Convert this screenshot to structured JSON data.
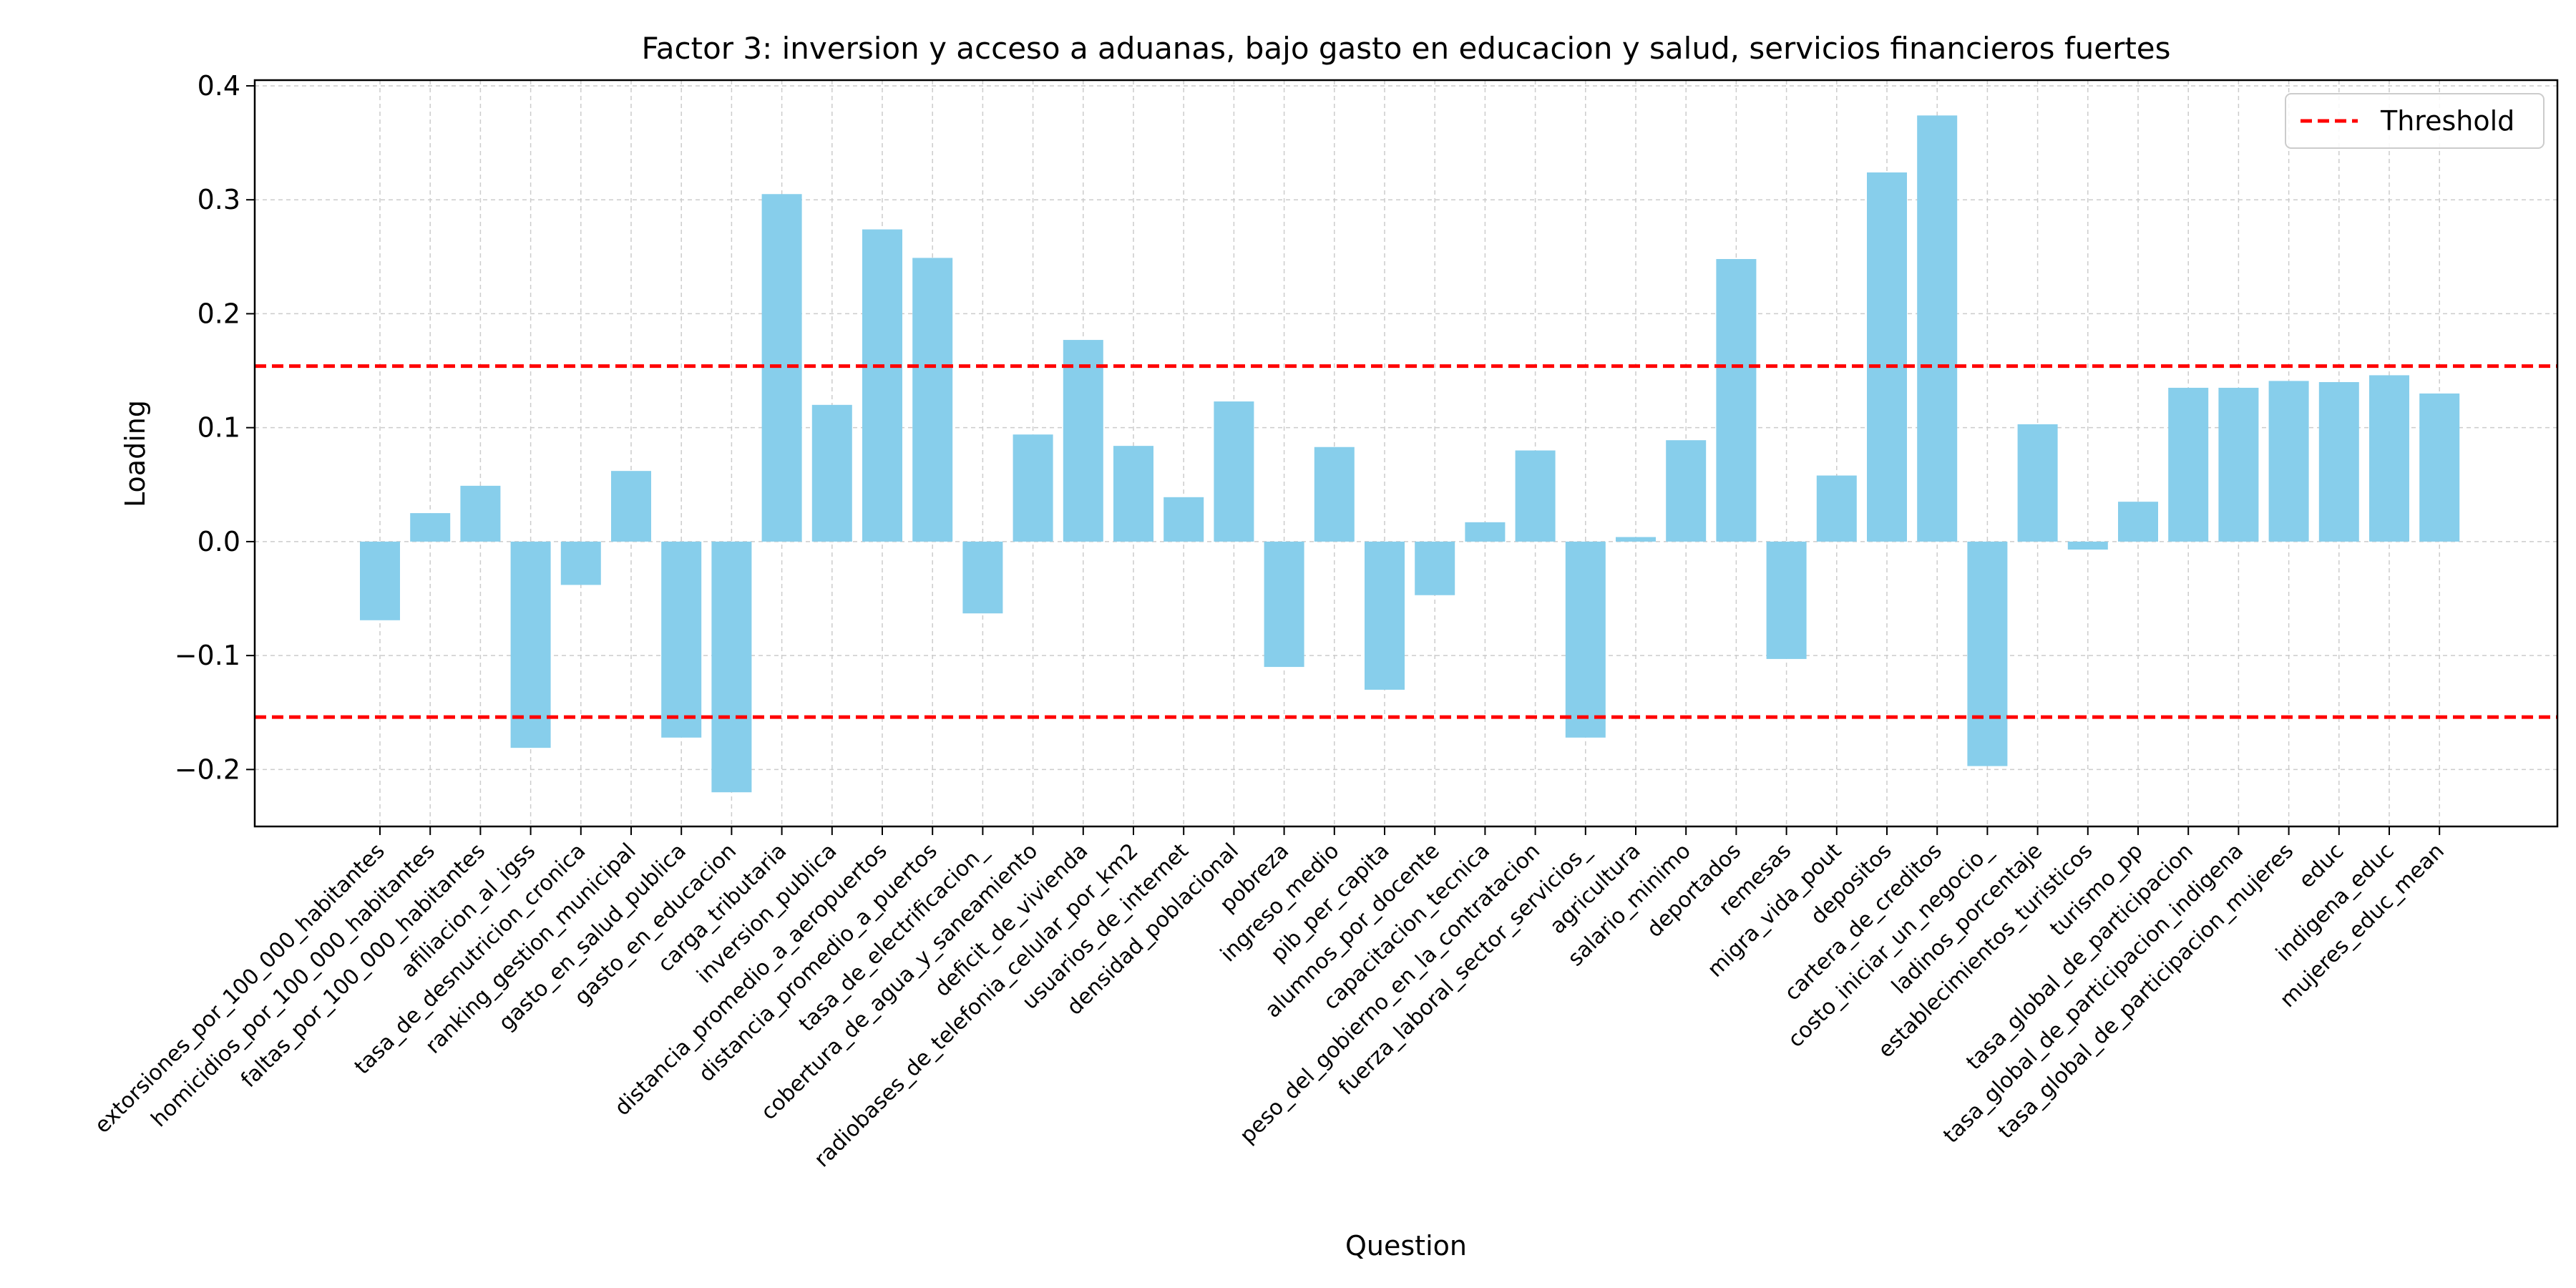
{
  "chart_data": {
    "type": "bar",
    "title": "Factor 3: inversion y acceso a aduanas, bajo gasto en educacion y salud, servicios financieros fuertes",
    "xlabel": "Question",
    "ylabel": "Loading",
    "ylim": [
      -0.25,
      0.405
    ],
    "yticks": [
      -0.2,
      -0.1,
      0.0,
      0.1,
      0.2,
      0.3,
      0.4
    ],
    "ytick_labels": [
      "−0.2",
      "−0.1",
      "0.0",
      "0.1",
      "0.2",
      "0.3",
      "0.4"
    ],
    "grid": true,
    "bar_color": "#87CEEB",
    "threshold": {
      "label": "Threshold",
      "values": [
        0.154,
        -0.154
      ],
      "color": "#ff0000",
      "style": "dashed"
    },
    "legend_position": "top-right",
    "categories": [
      "extorsiones_por_100_000_habitantes",
      "homicidios_por_100_000_habitantes",
      "faltas_por_100_000_habitantes",
      "afiliacion_al_igss",
      "tasa_de_desnutricion_cronica",
      "ranking_gestion_municipal",
      "gasto_en_salud_publica",
      "gasto_en_educacion",
      "carga_tributaria",
      "inversion_publica",
      "distancia_promedio_a_aeropuertos",
      "distancia_promedio_a_puertos",
      "tasa_de_electrificacion_",
      "cobertura_de_agua_y_saneamiento",
      "deficit_de_vivienda",
      "radiobases_de_telefonia_celular_por_km2",
      "usuarios_de_internet",
      "densidad_poblacional",
      "pobreza",
      "ingreso_medio",
      "pib_per_capita",
      "alumnos_por_docente",
      "capacitacion_tecnica",
      "peso_del_gobierno_en_la_contratacion",
      "fuerza_laboral_sector_servicios_",
      "agricultura",
      "salario_minimo",
      "deportados",
      "remesas",
      "migra_vida_pout",
      "depositos",
      "cartera_de_creditos",
      "costo_iniciar_un_negocio_",
      "ladinos_porcentaje",
      "establecimientos_turisticos",
      "turismo_pp",
      "tasa_global_de_participacion",
      "tasa_global_de_participacion_indigena",
      "tasa_global_de_participacion_mujeres",
      "educ",
      "indigena_educ",
      "mujeres_educ_mean"
    ],
    "values": [
      -0.069,
      0.025,
      0.049,
      -0.181,
      -0.038,
      0.062,
      -0.172,
      -0.22,
      0.305,
      0.12,
      0.274,
      0.249,
      -0.063,
      0.094,
      0.177,
      0.084,
      0.039,
      0.123,
      -0.11,
      0.083,
      -0.13,
      -0.047,
      0.017,
      0.08,
      -0.172,
      0.004,
      0.089,
      0.248,
      -0.103,
      0.058,
      0.324,
      0.374,
      -0.197,
      0.103,
      -0.007,
      0.035,
      0.135,
      0.135,
      0.141,
      0.14,
      0.146,
      0.13
    ]
  }
}
